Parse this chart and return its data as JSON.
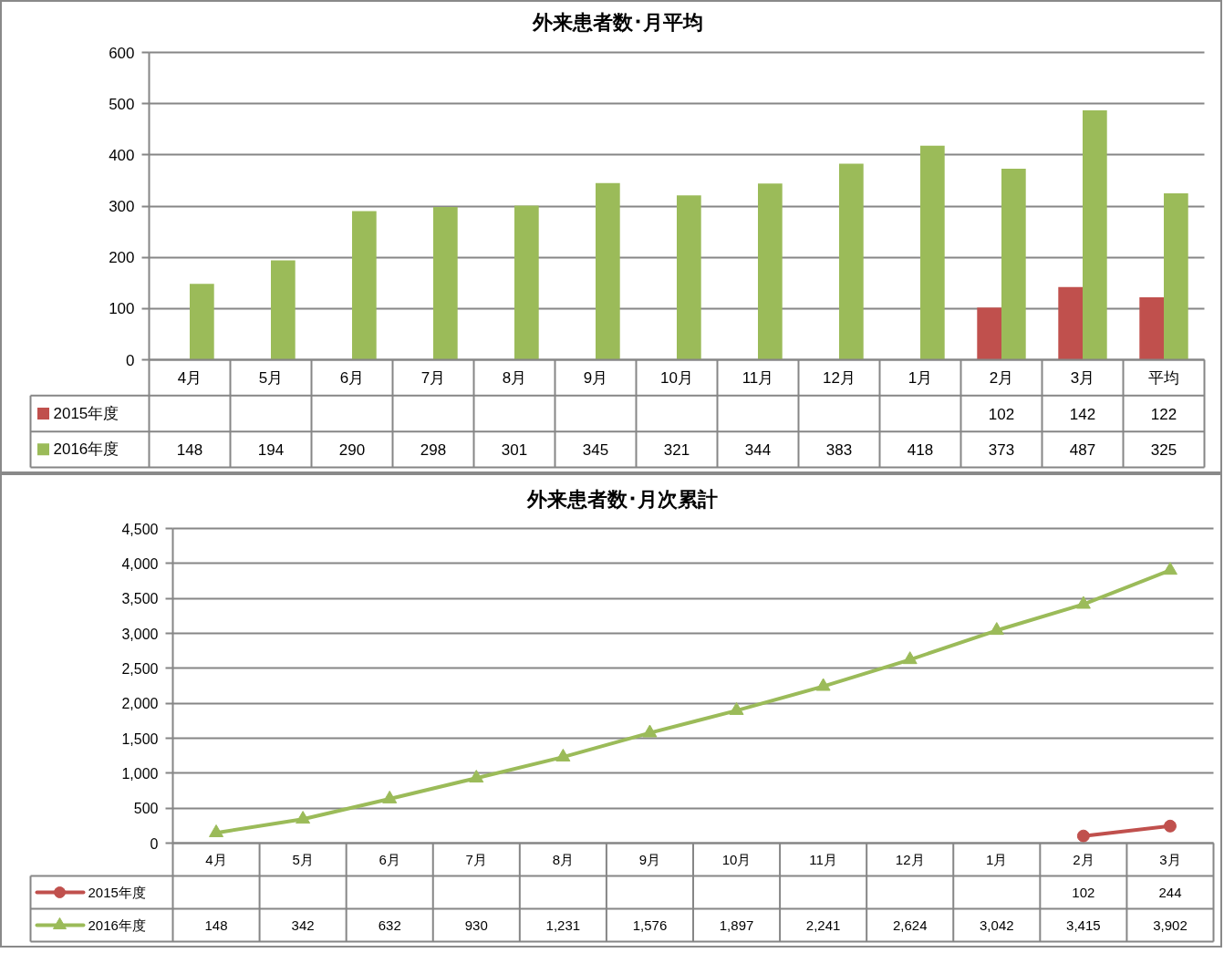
{
  "chart_data": [
    {
      "type": "bar",
      "title": "外来患者数･月平均",
      "categories": [
        "4月",
        "5月",
        "6月",
        "7月",
        "8月",
        "9月",
        "10月",
        "11月",
        "12月",
        "1月",
        "2月",
        "3月",
        "平均"
      ],
      "series": [
        {
          "name": "2015年度",
          "color": "#c0504d",
          "values": [
            null,
            null,
            null,
            null,
            null,
            null,
            null,
            null,
            null,
            null,
            102,
            142,
            122
          ]
        },
        {
          "name": "2016年度",
          "color": "#9bbb59",
          "values": [
            148,
            194,
            290,
            298,
            301,
            345,
            321,
            344,
            383,
            418,
            373,
            487,
            325
          ]
        }
      ],
      "ylim": [
        0,
        600
      ],
      "yticks": [
        0,
        100,
        200,
        300,
        400,
        500,
        600
      ],
      "grid": "y",
      "legend": "bottom left",
      "data_labels": true
    },
    {
      "type": "line",
      "title": "外来患者数･月次累計",
      "categories": [
        "4月",
        "5月",
        "6月",
        "7月",
        "8月",
        "9月",
        "10月",
        "11月",
        "12月",
        "1月",
        "2月",
        "3月"
      ],
      "series": [
        {
          "name": "2015年度",
          "color": "#c0504d",
          "marker": "circle",
          "values": [
            null,
            null,
            null,
            null,
            null,
            null,
            null,
            null,
            null,
            null,
            102,
            244
          ],
          "value_labels": [
            null,
            null,
            null,
            null,
            null,
            null,
            null,
            null,
            null,
            null,
            "102",
            "244"
          ]
        },
        {
          "name": "2016年度",
          "color": "#9bbb59",
          "marker": "triangle",
          "values": [
            148,
            342,
            632,
            930,
            1231,
            1576,
            1897,
            2241,
            2624,
            3042,
            3415,
            3902
          ],
          "value_labels": [
            "148",
            "342",
            "632",
            "930",
            "1,231",
            "1,576",
            "1,897",
            "2,241",
            "2,624",
            "3,042",
            "3,415",
            "3,902"
          ]
        }
      ],
      "ylim": [
        0,
        4500
      ],
      "yticks": [
        0,
        500,
        {
          "value": 1000,
          "label": "1,000"
        },
        {
          "value": 1500,
          "label": "1,500"
        },
        {
          "value": 2000,
          "label": "2,000"
        },
        {
          "value": 2500,
          "label": "2,500"
        },
        {
          "value": 3000,
          "label": "3,000"
        },
        {
          "value": 3500,
          "label": "3,500"
        },
        {
          "value": 4000,
          "label": "4,000"
        },
        {
          "value": 4500,
          "label": "4,500"
        }
      ],
      "grid": "y",
      "legend": "bottom left",
      "line_style": "solid"
    }
  ]
}
